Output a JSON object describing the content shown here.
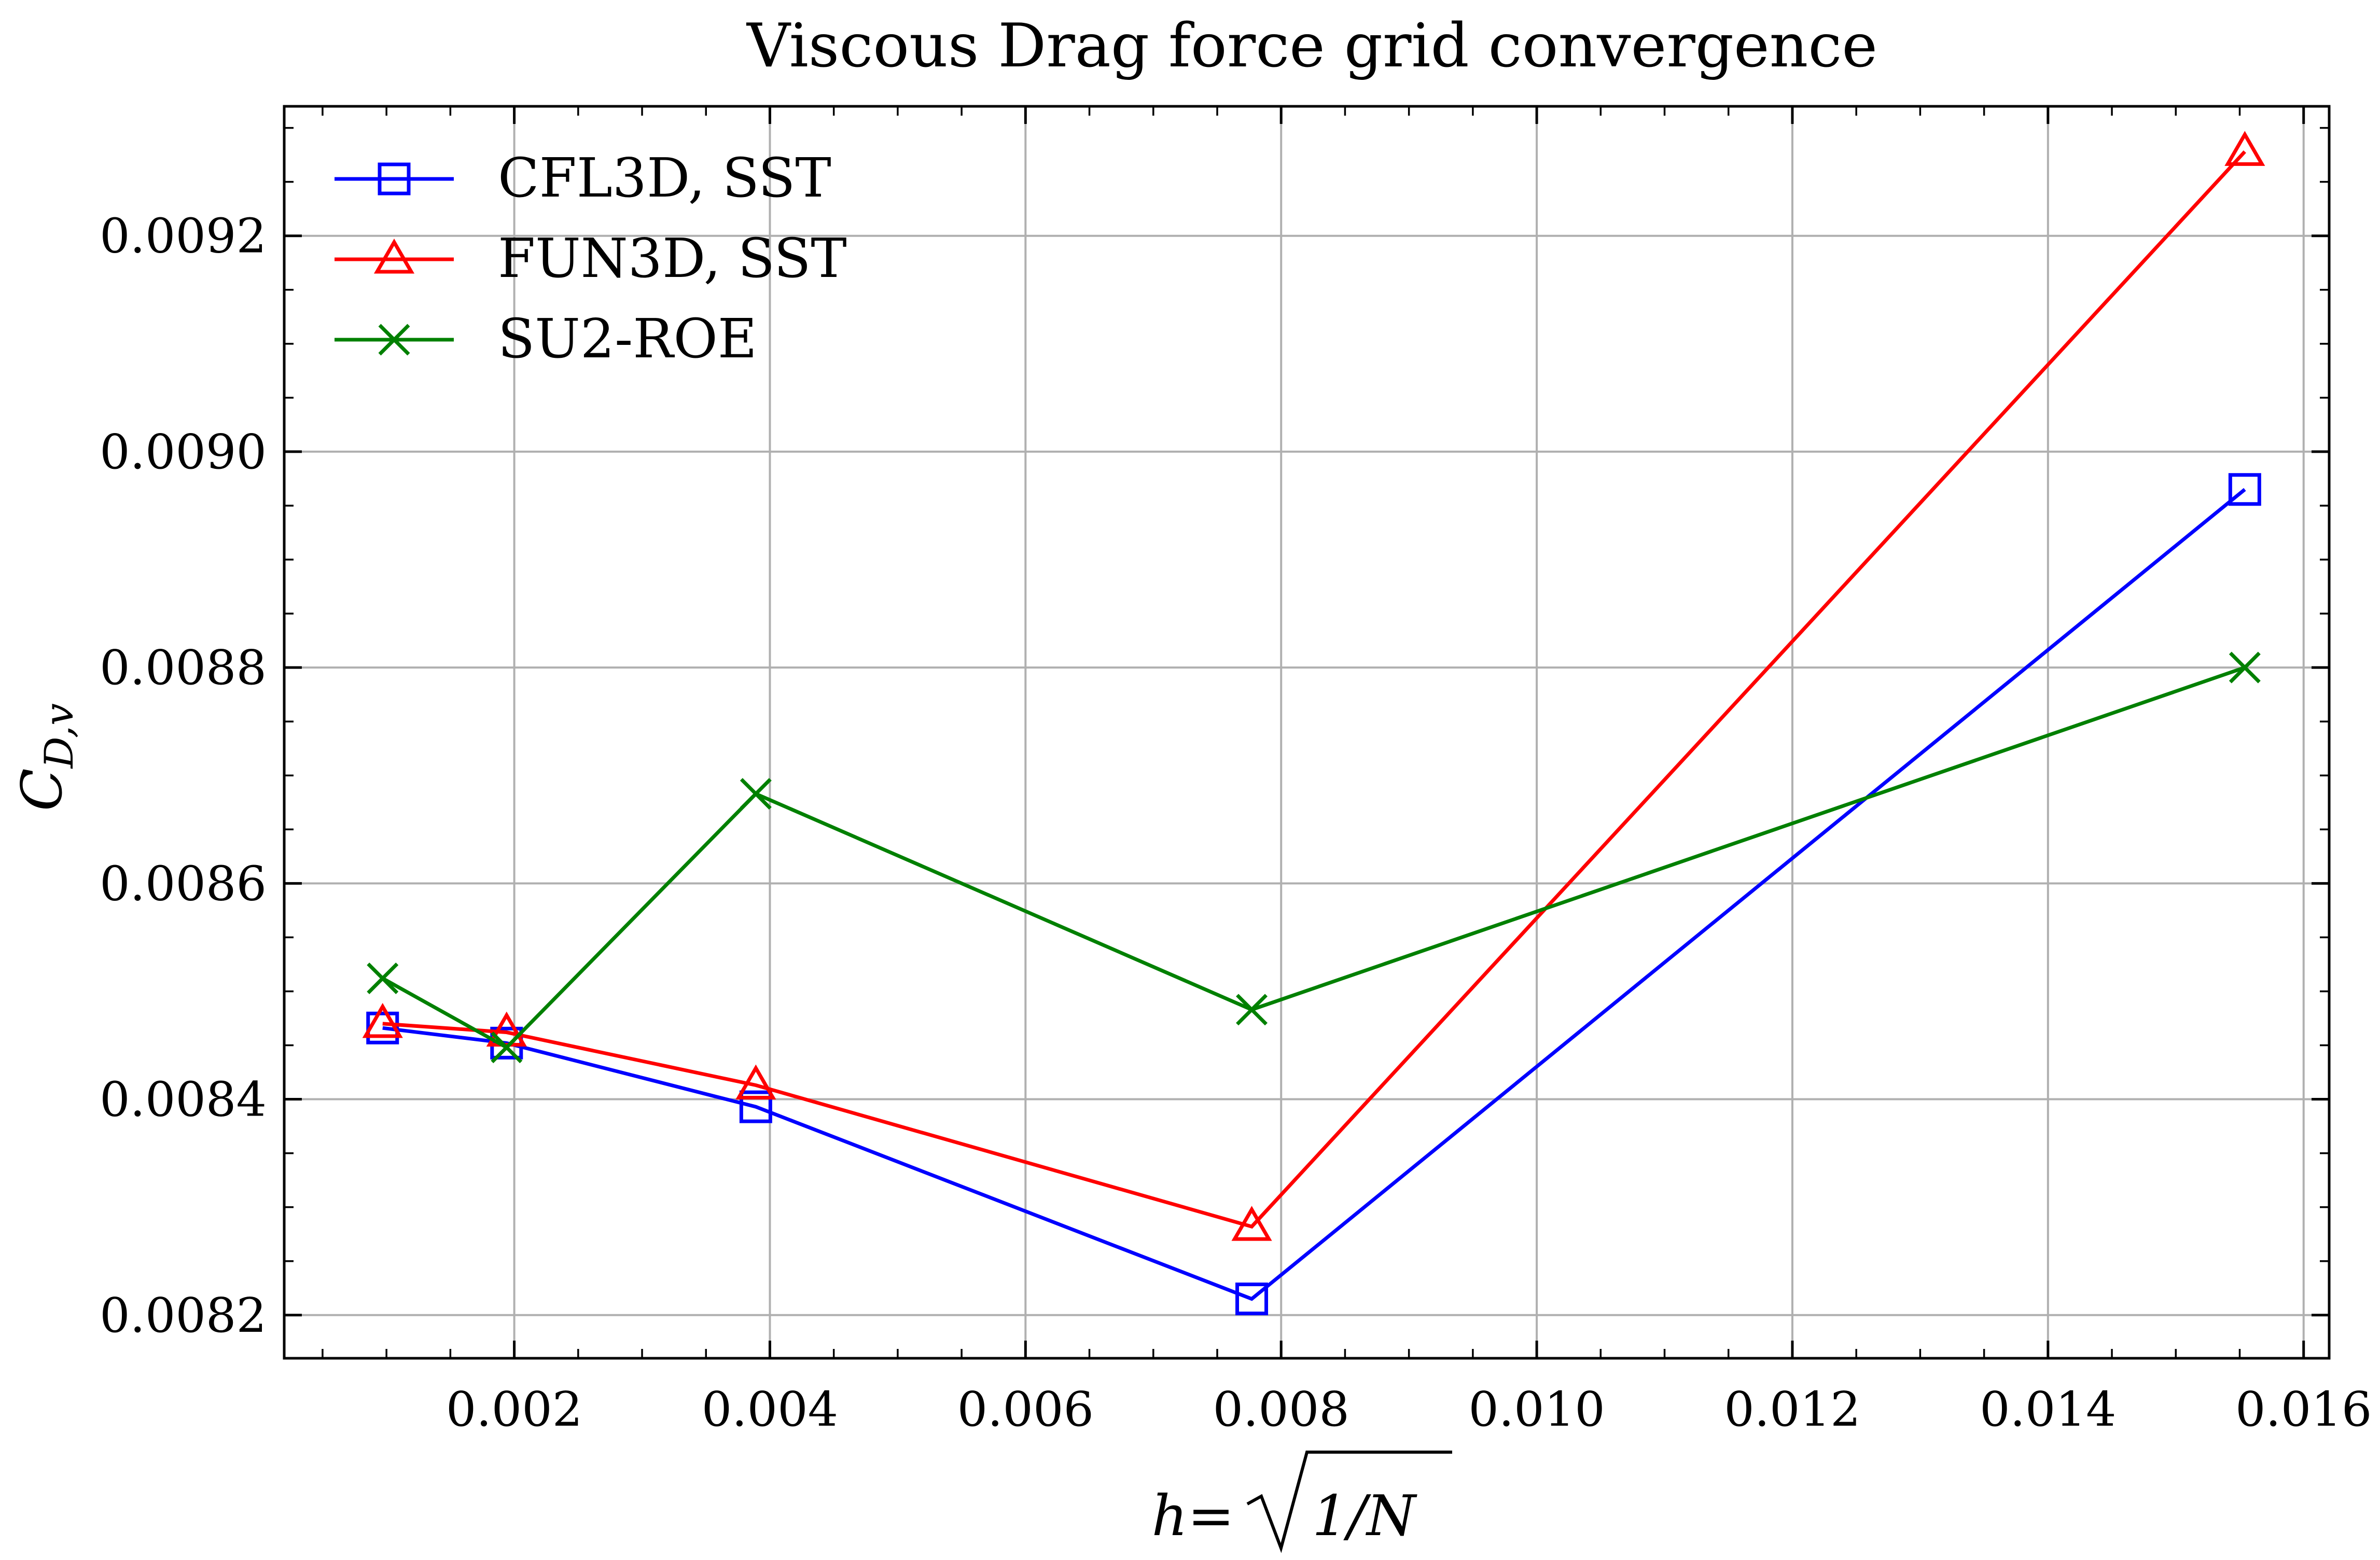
{
  "chart_data": {
    "type": "line",
    "title": "Viscous Drag force grid convergence",
    "xlabel": "h = √(1/N)",
    "xlabel_parts": {
      "lhs": "h",
      "eq": " = ",
      "radicand": "1/N"
    },
    "ylabel": "C_{D,v}",
    "ylabel_parts": {
      "base": "C",
      "sub": "D,v"
    },
    "xlim": [
      0.0002,
      0.0162
    ],
    "ylim": [
      0.00816,
      0.00932
    ],
    "xticks": [
      "0.002",
      "0.004",
      "0.006",
      "0.008",
      "0.010",
      "0.012",
      "0.014",
      "0.016"
    ],
    "xtick_values": [
      0.002,
      0.004,
      0.006,
      0.008,
      0.01,
      0.012,
      0.014,
      0.016
    ],
    "yticks": [
      "0.0082",
      "0.0084",
      "0.0086",
      "0.0088",
      "0.0090",
      "0.0092"
    ],
    "ytick_values": [
      0.0082,
      0.0084,
      0.0086,
      0.0088,
      0.009,
      0.0092
    ],
    "grid": true,
    "legend_position": "top-left",
    "x": [
      0.00097,
      0.00194,
      0.00389,
      0.00777,
      0.01554
    ],
    "series": [
      {
        "name": "CFL3D, SST",
        "color": "#0000ff",
        "marker": "square",
        "values": [
          0.008466,
          0.008452,
          0.008393,
          0.008215,
          0.008965
        ]
      },
      {
        "name": "FUN3D, SST",
        "color": "#ff0000",
        "marker": "triangle",
        "values": [
          0.00847,
          0.008462,
          0.008413,
          0.008282,
          0.009278
        ]
      },
      {
        "name": "SU2-ROE",
        "color": "#008000",
        "marker": "x",
        "values": [
          0.008512,
          0.008448,
          0.008683,
          0.008483,
          0.0088
        ]
      }
    ]
  }
}
